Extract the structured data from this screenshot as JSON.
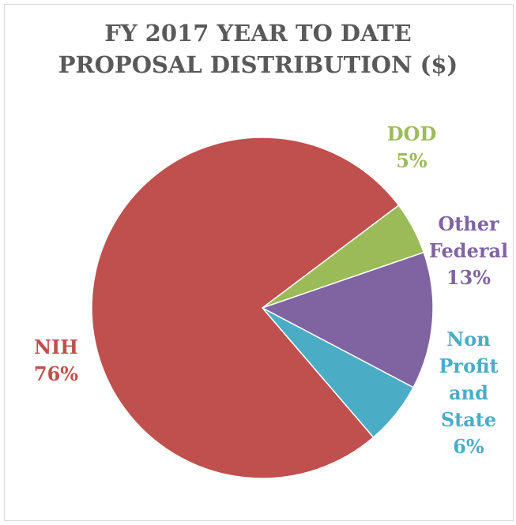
{
  "chart_data": {
    "type": "pie",
    "title_lines": [
      "FY 2017 YEAR TO DATE",
      "PROPOSAL DISTRIBUTION ($)"
    ],
    "slices": [
      {
        "name": "DOD",
        "label_lines": [
          "DOD"
        ],
        "value": 5,
        "percent_label": "5%",
        "color": "#9bbb59"
      },
      {
        "name": "Other Federal",
        "label_lines": [
          "Other",
          "Federal"
        ],
        "value": 13,
        "percent_label": "13%",
        "color": "#8064a2"
      },
      {
        "name": "Non Profit and State",
        "label_lines": [
          "Non",
          "Profit",
          "and",
          "State"
        ],
        "value": 6,
        "percent_label": "6%",
        "color": "#4bacc6"
      },
      {
        "name": "NIH",
        "label_lines": [
          "NIH"
        ],
        "value": 76,
        "percent_label": "76%",
        "color": "#c0504d"
      }
    ],
    "legend": "none",
    "data_labels": "outside"
  }
}
